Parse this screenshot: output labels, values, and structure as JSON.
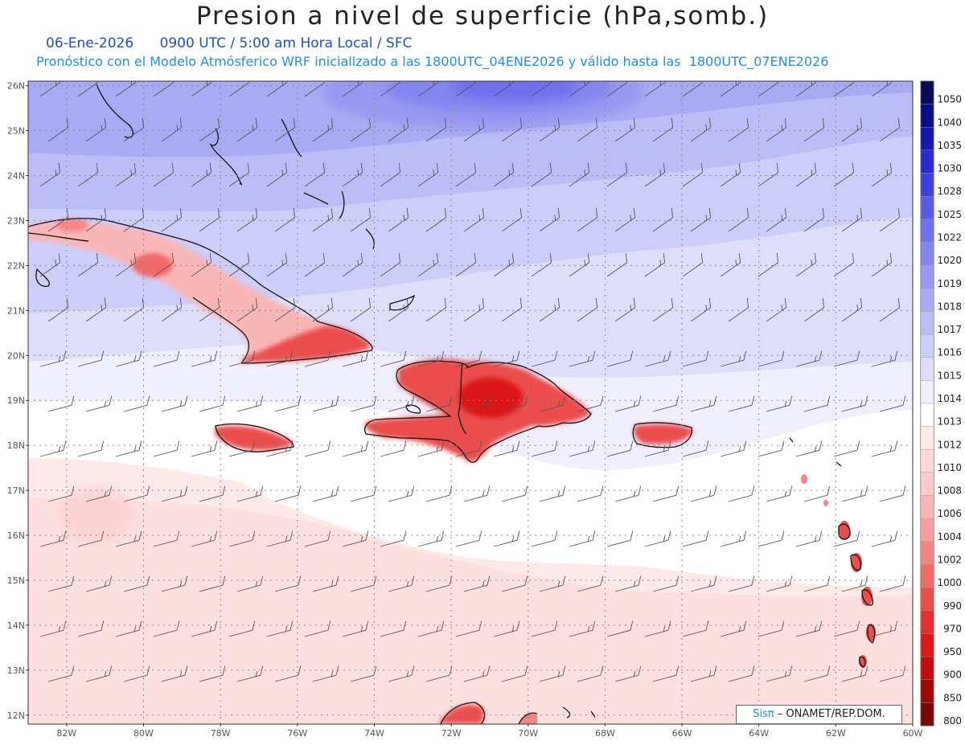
{
  "title": "Presion a nivel de superficie (hPa,somb.)",
  "date": "06-Ene-2026",
  "time_info": "0900 UTC / 5:00 am Hora Local / SFC",
  "forecast_info": "Pronóstico con el Modelo Atmósferico WRF inicializado a las 1800UTC_04ENE2026 y válido hasta las  1800UTC_07ENE2026",
  "credit": {
    "brand": "Sisπ",
    "text": "– ONAMET/REP.DOM."
  },
  "map": {
    "lat_range": [
      11.8,
      26.1
    ],
    "lon_range": [
      -83.0,
      -60.0
    ],
    "lat_labels": [
      "26N",
      "25N",
      "24N",
      "23N",
      "22N",
      "21N",
      "20N",
      "19N",
      "18N",
      "17N",
      "16N",
      "15N",
      "14N",
      "13N",
      "12N"
    ],
    "lon_labels": [
      "82W",
      "80W",
      "78W",
      "76W",
      "74W",
      "72W",
      "70W",
      "68W",
      "66W",
      "64W",
      "62W",
      "60W"
    ]
  },
  "legend": {
    "levels": [
      "1050",
      "1040",
      "1035",
      "1030",
      "1028",
      "1025",
      "1022",
      "1020",
      "1019",
      "1018",
      "1017",
      "1016",
      "1015",
      "1014",
      "1013",
      "1012",
      "1010",
      "1008",
      "1006",
      "1004",
      "1002",
      "1000",
      "990",
      "970",
      "950",
      "900",
      "850",
      "800"
    ],
    "colors": [
      "#0a0a55",
      "#0c0c8a",
      "#1515b0",
      "#2a2ad0",
      "#3f3fe0",
      "#5a5ae8",
      "#7070ee",
      "#8585f0",
      "#9898f2",
      "#aaaaf4",
      "#bcbcf7",
      "#cdcdf9",
      "#dedefb",
      "#efeffd",
      "#ffffff",
      "#fde9e9",
      "#fcdada",
      "#fbcaca",
      "#f9b6b6",
      "#f79f9f",
      "#f48585",
      "#f06a6a",
      "#eb4d4d",
      "#e43030",
      "#dc1818",
      "#c20c0c",
      "#a00808",
      "#7a0505"
    ]
  }
}
